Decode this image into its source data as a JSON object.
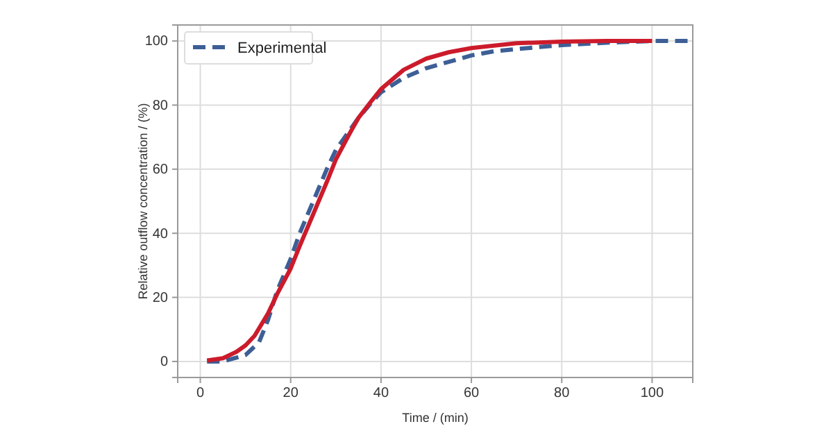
{
  "chart_data": {
    "type": "line",
    "xlabel": "Time / (min)",
    "ylabel": "Relative outflow concentration / (%)",
    "xlim": [
      -5,
      109
    ],
    "xticks": [
      0,
      20,
      40,
      60,
      80,
      100
    ],
    "ylim": [
      -5,
      105
    ],
    "yticks": [
      0,
      20,
      40,
      60,
      80,
      100
    ],
    "grid": true,
    "legend": "top left",
    "series": [
      {
        "name": "Experimental",
        "color": "#3d5f96",
        "line_style": "dashed",
        "x": [
          1.5,
          5,
          10,
          13,
          15,
          17,
          20,
          22,
          25,
          28,
          30,
          35,
          38,
          40,
          45,
          50,
          55,
          60,
          65,
          70,
          80,
          90,
          100,
          108
        ],
        "values": [
          0,
          0,
          2,
          6,
          13,
          22,
          32,
          40,
          50,
          60,
          66,
          76,
          81,
          84,
          88.5,
          91.5,
          93.5,
          95.5,
          96.8,
          97.5,
          98.7,
          99.5,
          100,
          100
        ]
      },
      {
        "color": "#cc1b2b",
        "line_style": "solid",
        "x": [
          1.5,
          5,
          8,
          10,
          12,
          15,
          17,
          20,
          22,
          25,
          28,
          30,
          33,
          35,
          38,
          40,
          45,
          50,
          55,
          60,
          70,
          80,
          90,
          100
        ],
        "values": [
          0.3,
          1,
          3,
          5,
          8,
          15,
          21,
          29,
          36,
          46,
          56,
          63,
          71,
          76,
          81.5,
          85,
          91,
          94.5,
          96.5,
          97.8,
          99.3,
          99.8,
          100,
          100
        ]
      }
    ]
  }
}
